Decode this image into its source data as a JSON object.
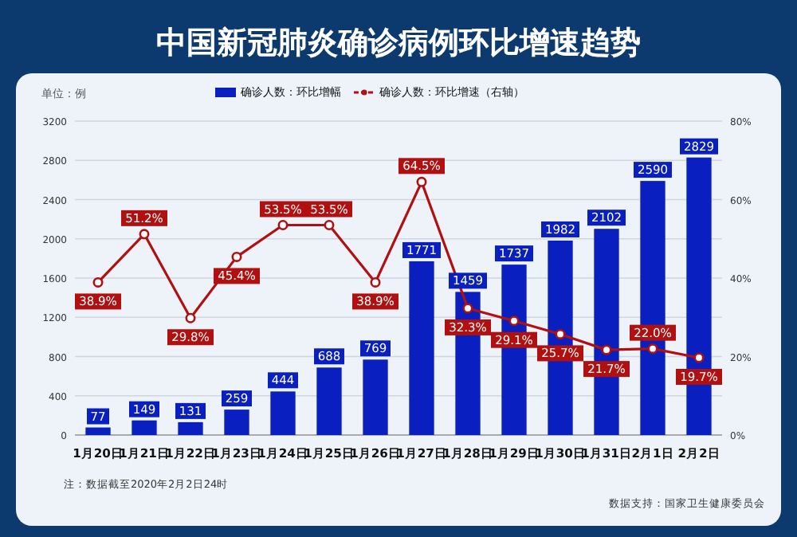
{
  "chart_data": {
    "type": "bar",
    "title": "中国新冠肺炎确诊病例环比增速趋势",
    "ylabel": "单位：例",
    "categories": [
      "1月20日",
      "1月21日",
      "1月22日",
      "1月23日",
      "1月24日",
      "1月25日",
      "1月26日",
      "1月27日",
      "1月28日",
      "1月29日",
      "1月30日",
      "1月31日",
      "2月1日",
      "2月2日"
    ],
    "series": [
      {
        "name": "确诊人数：环比增幅",
        "color": "#0a1fbf",
        "values": [
          77,
          149,
          131,
          259,
          444,
          688,
          769,
          1771,
          1459,
          1737,
          1982,
          2102,
          2590,
          2829
        ]
      },
      {
        "name": "确诊人数：环比增速（右轴）",
        "type": "line",
        "axis": "y2",
        "color": "#b01010",
        "marker": "circle",
        "line_style": "solid",
        "values": [
          38.9,
          51.2,
          29.8,
          45.4,
          53.5,
          53.5,
          38.9,
          64.5,
          32.3,
          29.1,
          25.7,
          21.7,
          22.0,
          19.7
        ],
        "value_labels": [
          "38.9%",
          "51.2%",
          "29.8%",
          "45.4%",
          "53.5%",
          "53.5%",
          "38.9%",
          "64.5%",
          "32.3%",
          "29.1%",
          "25.7%",
          "21.7%",
          "22.0%",
          "19.7%"
        ]
      }
    ],
    "ylim": [
      0,
      3200
    ],
    "yticks": [
      0,
      400,
      800,
      1200,
      1600,
      2000,
      2400,
      2800,
      3200
    ],
    "y2lim": [
      0,
      80
    ],
    "y2ticks": [
      {
        "value": 0,
        "label": "0%"
      },
      {
        "value": 20,
        "label": "20%"
      },
      {
        "value": 40,
        "label": "40%"
      },
      {
        "value": 60,
        "label": "60%"
      },
      {
        "value": 80,
        "label": "80%"
      }
    ],
    "data_labels": true,
    "grid": "y",
    "legend": "top",
    "annotations": [
      "注：数据截至2020年2月2日24时",
      "数据支持：国家卫生健康委员会"
    ]
  }
}
